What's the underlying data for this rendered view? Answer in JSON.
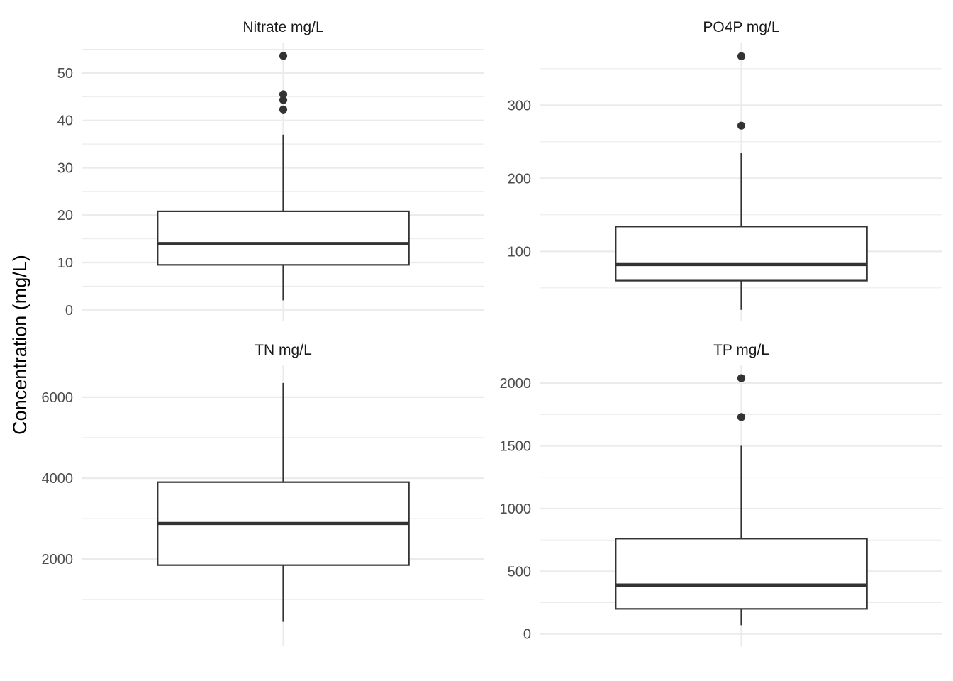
{
  "chart_data": {
    "type": "boxplot",
    "ylabel": "Concentration (mg/L)",
    "grid": true,
    "panels": [
      {
        "title": "Nitrate mg/L",
        "ylim": [
          0,
          54
        ],
        "yticks": [
          0,
          10,
          20,
          30,
          40,
          50
        ],
        "minor_yticks": [
          5,
          15,
          25,
          35,
          45,
          55
        ],
        "box": {
          "whisker_low": 2,
          "q1": 9.5,
          "median": 14,
          "q3": 20.8,
          "whisker_high": 37
        },
        "outliers": [
          42.3,
          44.3,
          45.5,
          53.6
        ]
      },
      {
        "title": "PO4P mg/L",
        "ylim": [
          20,
          370
        ],
        "yticks": [
          100,
          200,
          300
        ],
        "minor_yticks": [
          50,
          150,
          250,
          350
        ],
        "box": {
          "whisker_low": 20,
          "q1": 60,
          "median": 82,
          "q3": 134,
          "whisker_high": 235
        },
        "outliers": [
          272,
          367
        ]
      },
      {
        "title": "TN mg/L",
        "ylim": [
          150,
          6500
        ],
        "yticks": [
          2000,
          4000,
          6000
        ],
        "minor_yticks": [
          1000,
          3000,
          5000,
          7000
        ],
        "box": {
          "whisker_low": 450,
          "q1": 1850,
          "median": 2880,
          "q3": 3900,
          "whisker_high": 6350
        },
        "outliers": []
      },
      {
        "title": "TP mg/L",
        "ylim": [
          0,
          2050
        ],
        "yticks": [
          0,
          500,
          1000,
          1500,
          2000
        ],
        "minor_yticks": [
          250,
          750,
          1250,
          1750,
          2250
        ],
        "box": {
          "whisker_low": 70,
          "q1": 200,
          "median": 390,
          "q3": 760,
          "whisker_high": 1500
        },
        "outliers": [
          1730,
          2040
        ]
      }
    ]
  }
}
